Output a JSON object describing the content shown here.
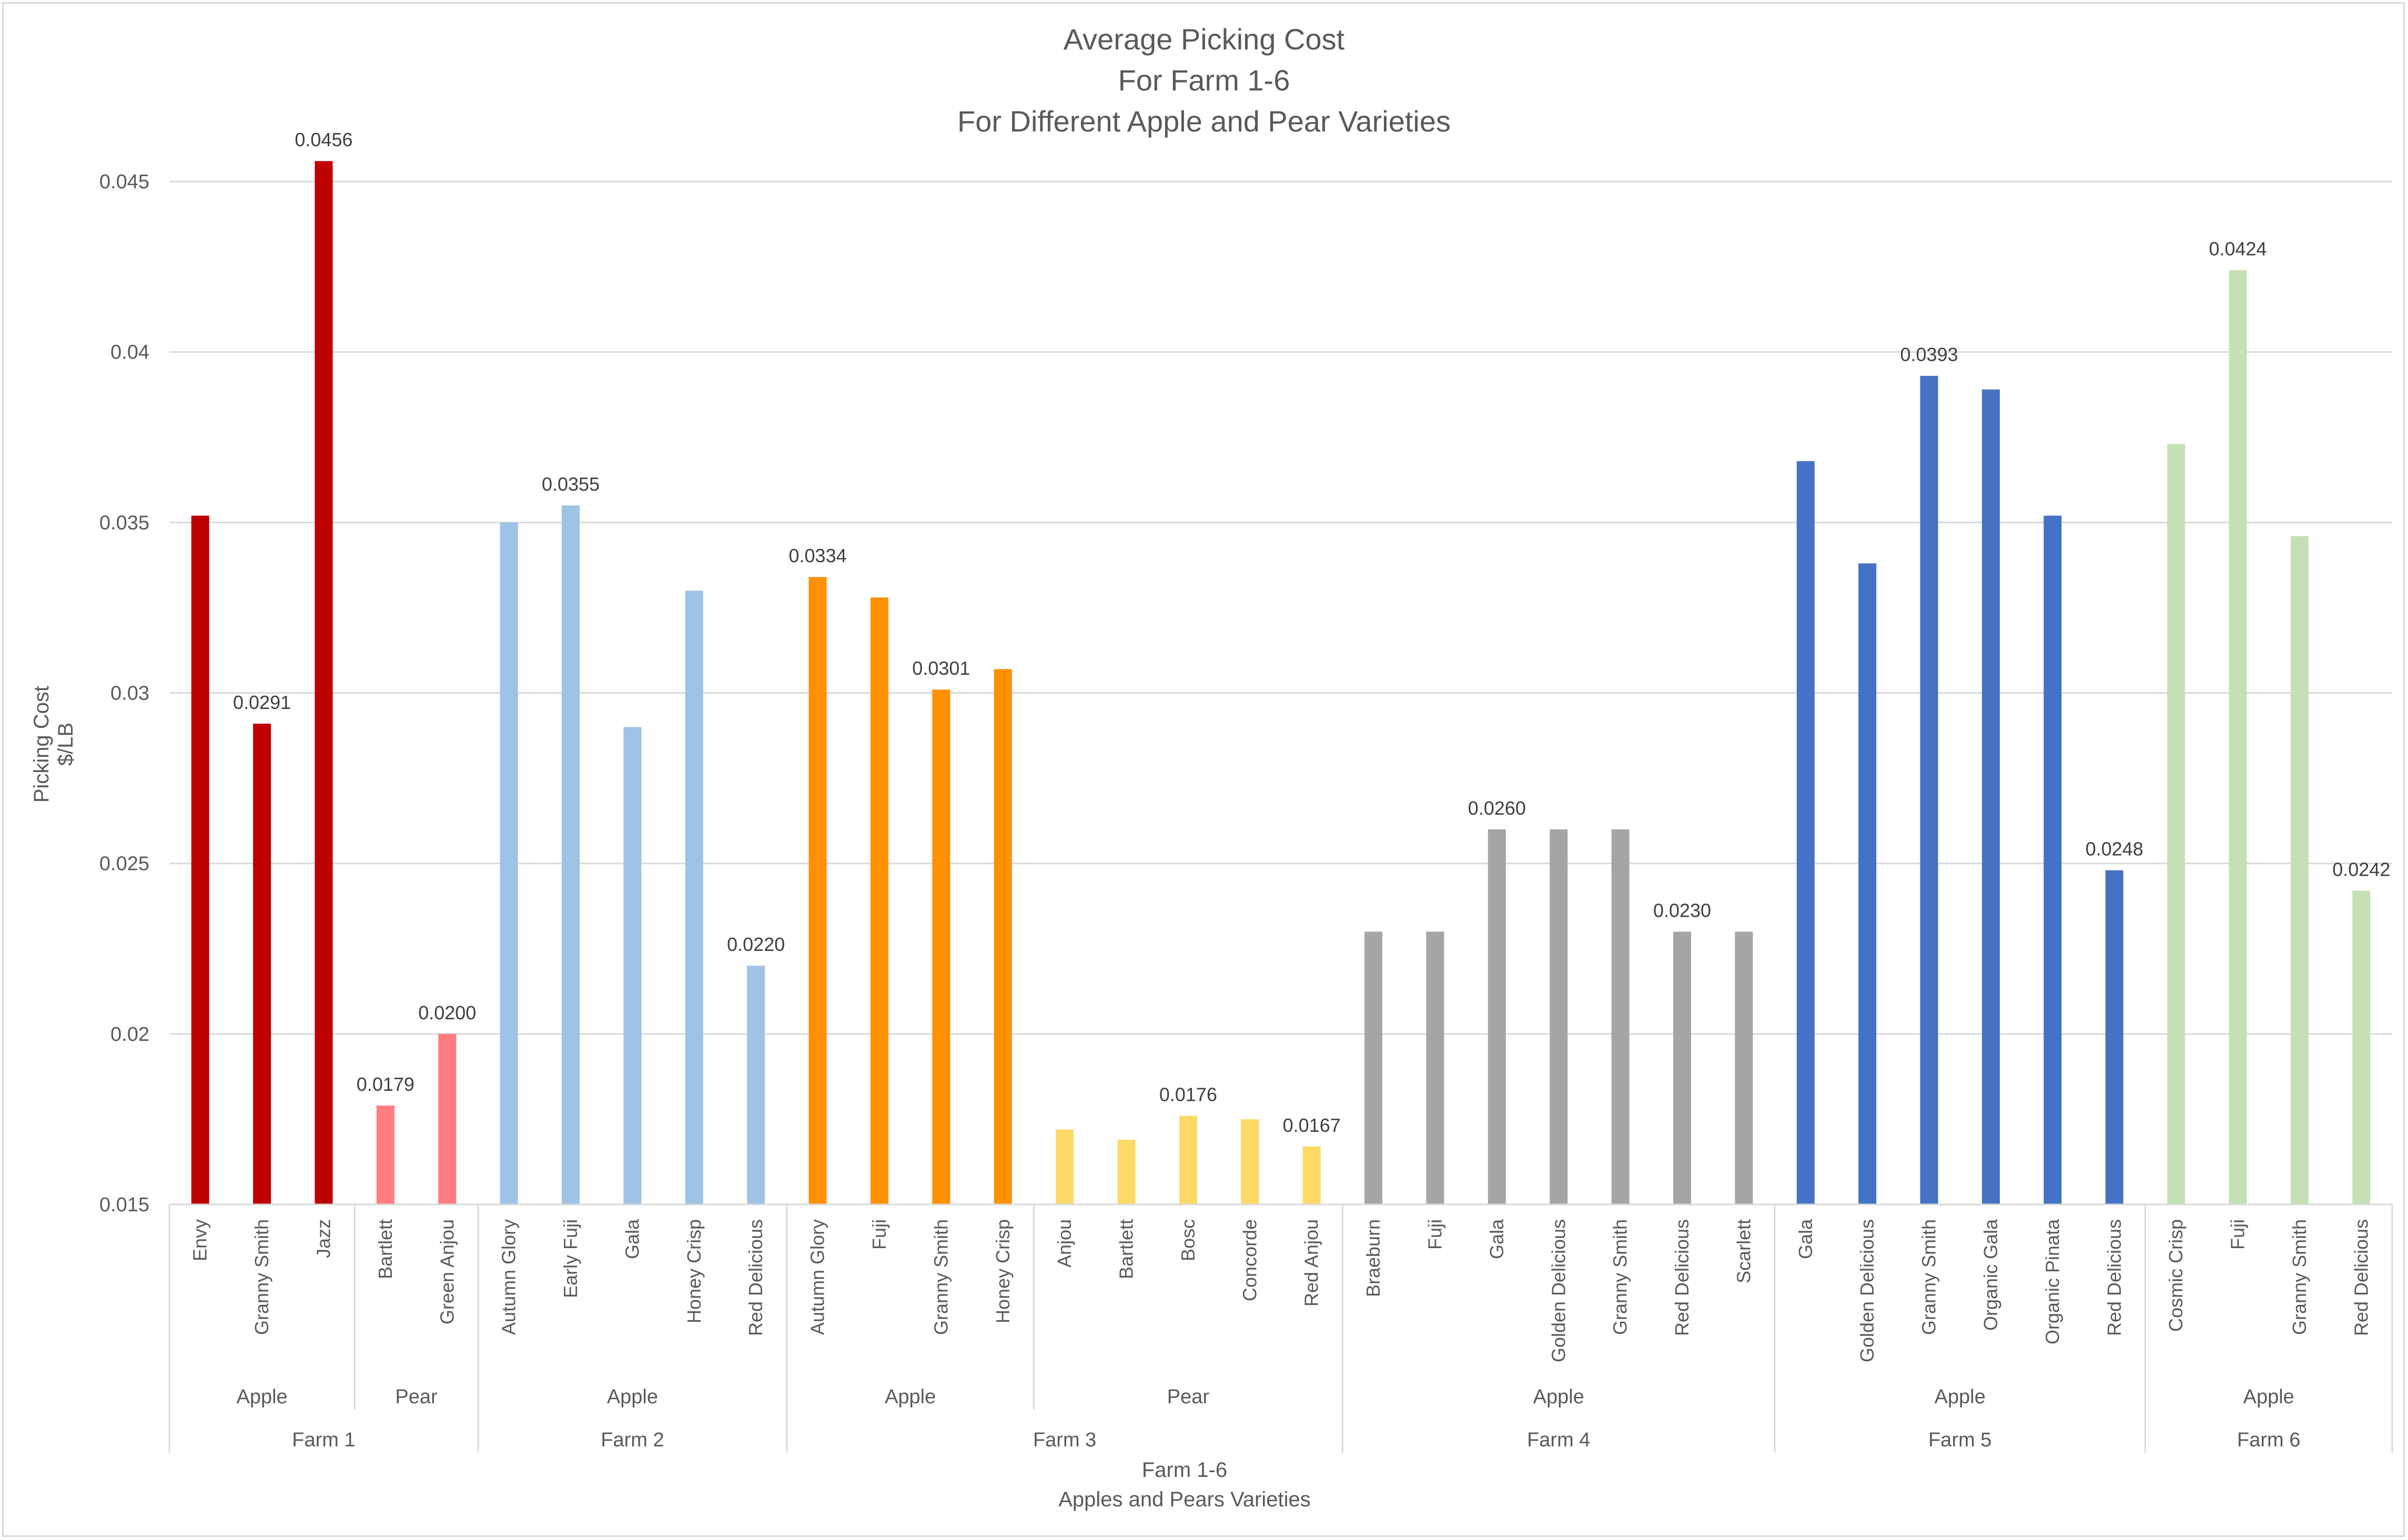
{
  "chart_data": {
    "type": "bar",
    "title": [
      "Average Picking Cost",
      "For Farm 1-6",
      "For Different Apple and Pear Varieties"
    ],
    "xlabel": [
      "Farm 1-6",
      "Apples and Pears Varieties"
    ],
    "ylabel": [
      "Picking Cost",
      "$/LB"
    ],
    "ylim": [
      0.015,
      0.0475
    ],
    "yticks": [
      "0.015",
      "0.02",
      "0.025",
      "0.03",
      "0.035",
      "0.04",
      "0.045"
    ],
    "grid": true,
    "farms": [
      {
        "name": "Farm 1",
        "groups": [
          {
            "name": "Apple",
            "color": "#c00000",
            "bars": [
              {
                "label": "Envy",
                "value": 0.0352
              },
              {
                "label": "Granny Smith",
                "value": 0.0291,
                "data_label": "0.0291"
              },
              {
                "label": "Jazz",
                "value": 0.0456,
                "data_label": "0.0456"
              }
            ]
          },
          {
            "name": "Pear",
            "color": "#ff7c80",
            "bars": [
              {
                "label": "Bartlett",
                "value": 0.0179,
                "data_label": "0.0179"
              },
              {
                "label": "Green Anjou",
                "value": 0.02,
                "data_label": "0.0200"
              }
            ]
          }
        ]
      },
      {
        "name": "Farm 2",
        "groups": [
          {
            "name": "Apple",
            "color": "#9dc3e6",
            "bars": [
              {
                "label": "Autumn Glory",
                "value": 0.035
              },
              {
                "label": "Early Fuji",
                "value": 0.0355,
                "data_label": "0.0355"
              },
              {
                "label": "Gala",
                "value": 0.029
              },
              {
                "label": "Honey Crisp",
                "value": 0.033
              },
              {
                "label": "Red Delicious",
                "value": 0.022,
                "data_label": "0.0220"
              }
            ]
          }
        ]
      },
      {
        "name": "Farm 3",
        "groups": [
          {
            "name": "Apple",
            "color": "#ff9000",
            "bars": [
              {
                "label": "Autumn Glory",
                "value": 0.0334,
                "data_label": "0.0334"
              },
              {
                "label": "Fuji",
                "value": 0.0328
              },
              {
                "label": "Granny Smith",
                "value": 0.0301,
                "data_label": "0.0301"
              },
              {
                "label": "Honey Crisp",
                "value": 0.0307
              }
            ]
          },
          {
            "name": "Pear",
            "color": "#ffd966",
            "bars": [
              {
                "label": "Anjou",
                "value": 0.0172
              },
              {
                "label": "Bartlett",
                "value": 0.0169
              },
              {
                "label": "Bosc",
                "value": 0.0176,
                "data_label": "0.0176"
              },
              {
                "label": "Concorde",
                "value": 0.0175
              },
              {
                "label": "Red Anjou",
                "value": 0.0167,
                "data_label": "0.0167"
              }
            ]
          }
        ]
      },
      {
        "name": "Farm 4",
        "groups": [
          {
            "name": "Apple",
            "color": "#a5a5a5",
            "bars": [
              {
                "label": "Braeburn",
                "value": 0.023
              },
              {
                "label": "Fuji",
                "value": 0.023
              },
              {
                "label": "Gala",
                "value": 0.026,
                "data_label": "0.0260"
              },
              {
                "label": "Golden Delicious",
                "value": 0.026
              },
              {
                "label": "Granny Smith",
                "value": 0.026
              },
              {
                "label": "Red Delicious",
                "value": 0.023,
                "data_label": "0.0230"
              },
              {
                "label": "Scarlett",
                "value": 0.023
              }
            ]
          }
        ]
      },
      {
        "name": "Farm 5",
        "groups": [
          {
            "name": "Apple",
            "color": "#4472c4",
            "bars": [
              {
                "label": "Gala",
                "value": 0.0368
              },
              {
                "label": "Golden Delicious",
                "value": 0.0338
              },
              {
                "label": "Granny Smith",
                "value": 0.0393,
                "data_label": "0.0393"
              },
              {
                "label": "Organic Gala",
                "value": 0.0389
              },
              {
                "label": "Organic Pinata",
                "value": 0.0352
              },
              {
                "label": "Red Delicious",
                "value": 0.0248,
                "data_label": "0.0248"
              }
            ]
          }
        ]
      },
      {
        "name": "Farm 6",
        "groups": [
          {
            "name": "Apple",
            "color": "#c5e0b4",
            "bars": [
              {
                "label": "Cosmic Crisp",
                "value": 0.0373
              },
              {
                "label": "Fuji",
                "value": 0.0424,
                "data_label": "0.0424"
              },
              {
                "label": "Granny Smith",
                "value": 0.0346
              },
              {
                "label": "Red Delicious",
                "value": 0.0242,
                "data_label": "0.0242"
              }
            ]
          }
        ]
      }
    ]
  }
}
